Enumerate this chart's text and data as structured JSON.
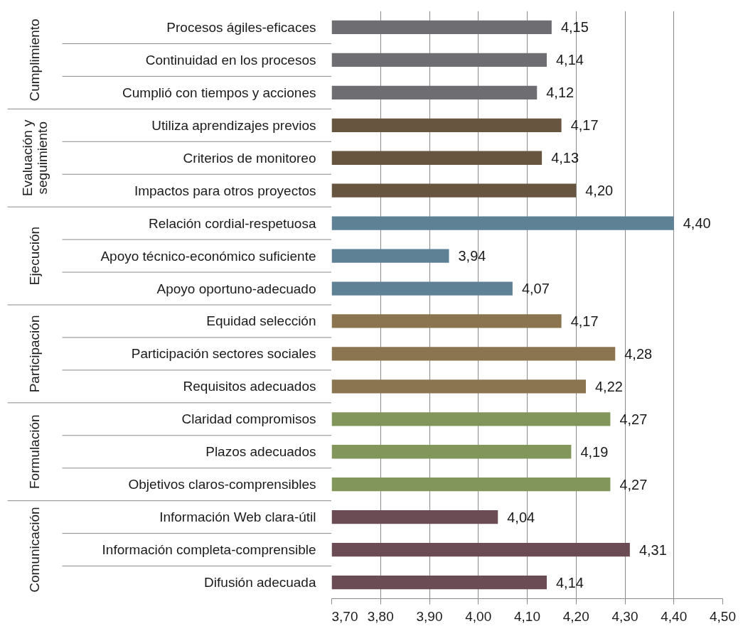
{
  "chart_data": {
    "type": "bar",
    "orientation": "horizontal",
    "categories": [
      "Procesos ágiles-eficaces",
      "Continuidad en los procesos",
      "Cumplió con tiempos y acciones",
      "Utiliza aprendizajes previos",
      "Criterios de monitoreo",
      "Impactos para otros proyectos",
      "Relación cordial-respetuosa",
      "Apoyo técnico-económico suficiente",
      "Apoyo oportuno-adecuado",
      "Equidad selección",
      "Participación sectores sociales",
      "Requisitos adecuados",
      "Claridad compromisos",
      "Plazos adecuados",
      "Objetivos claros-comprensibles",
      "Información Web clara-útil",
      "Información completa-comprensible",
      "Difusión adecuada"
    ],
    "series": [
      {
        "color": "#6e6d72",
        "values": [
          4.15,
          4.14,
          4.12,
          null,
          null,
          null,
          null,
          null,
          null,
          null,
          null,
          null,
          null,
          null,
          null,
          null,
          null,
          null
        ],
        "value_labels": [
          "4,15",
          "4,14",
          "4,12",
          null,
          null,
          null,
          null,
          null,
          null,
          null,
          null,
          null,
          null,
          null,
          null,
          null,
          null,
          null
        ]
      },
      {
        "color": "#67553f",
        "values": [
          null,
          null,
          null,
          4.17,
          4.13,
          4.2,
          null,
          null,
          null,
          null,
          null,
          null,
          null,
          null,
          null,
          null,
          null,
          null
        ],
        "value_labels": [
          null,
          null,
          null,
          "4,17",
          "4,13",
          "4,20",
          null,
          null,
          null,
          null,
          null,
          null,
          null,
          null,
          null,
          null,
          null,
          null
        ]
      },
      {
        "color": "#5f8196",
        "values": [
          null,
          null,
          null,
          null,
          null,
          null,
          4.4,
          3.94,
          4.07,
          null,
          null,
          null,
          null,
          null,
          null,
          null,
          null,
          null
        ],
        "value_labels": [
          null,
          null,
          null,
          null,
          null,
          null,
          "4,40",
          "3,94",
          "4,07",
          null,
          null,
          null,
          null,
          null,
          null,
          null,
          null,
          null
        ]
      },
      {
        "color": "#8a7550",
        "values": [
          null,
          null,
          null,
          null,
          null,
          null,
          null,
          null,
          null,
          4.17,
          4.28,
          4.22,
          null,
          null,
          null,
          null,
          null,
          null
        ],
        "value_labels": [
          null,
          null,
          null,
          null,
          null,
          null,
          null,
          null,
          null,
          "4,17",
          "4,28",
          "4,22",
          null,
          null,
          null,
          null,
          null,
          null
        ]
      },
      {
        "color": "#82955a",
        "values": [
          null,
          null,
          null,
          null,
          null,
          null,
          null,
          null,
          null,
          null,
          null,
          null,
          4.27,
          4.19,
          4.27,
          null,
          null,
          null
        ],
        "value_labels": [
          null,
          null,
          null,
          null,
          null,
          null,
          null,
          null,
          null,
          null,
          null,
          null,
          "4,27",
          "4,19",
          "4,27",
          null,
          null,
          null
        ]
      },
      {
        "color": "#6b4c54",
        "values": [
          null,
          null,
          null,
          null,
          null,
          null,
          null,
          null,
          null,
          null,
          null,
          null,
          null,
          null,
          null,
          4.04,
          4.31,
          4.14
        ],
        "value_labels": [
          null,
          null,
          null,
          null,
          null,
          null,
          null,
          null,
          null,
          null,
          null,
          null,
          null,
          null,
          null,
          "4,04",
          "4,31",
          "4,14"
        ]
      }
    ],
    "annotations": [
      "Cumplimiento",
      "Evaluación y seguimiento",
      "Ejecución",
      "Participación",
      "Formulación",
      "Comunicación"
    ],
    "xlim": [
      3.7,
      4.5
    ],
    "xticks": [
      {
        "value": 3.7,
        "label": "3,70"
      },
      {
        "value": 3.8,
        "label": "3,80"
      },
      {
        "value": 3.9,
        "label": "3,90"
      },
      {
        "value": 4.0,
        "label": "4,00"
      },
      {
        "value": 4.1,
        "label": "4,10"
      },
      {
        "value": 4.2,
        "label": "4,20"
      },
      {
        "value": 4.3,
        "label": "4,30"
      },
      {
        "value": 4.4,
        "label": "4,40"
      },
      {
        "value": 4.5,
        "label": "4,50"
      }
    ],
    "grid": "x"
  }
}
